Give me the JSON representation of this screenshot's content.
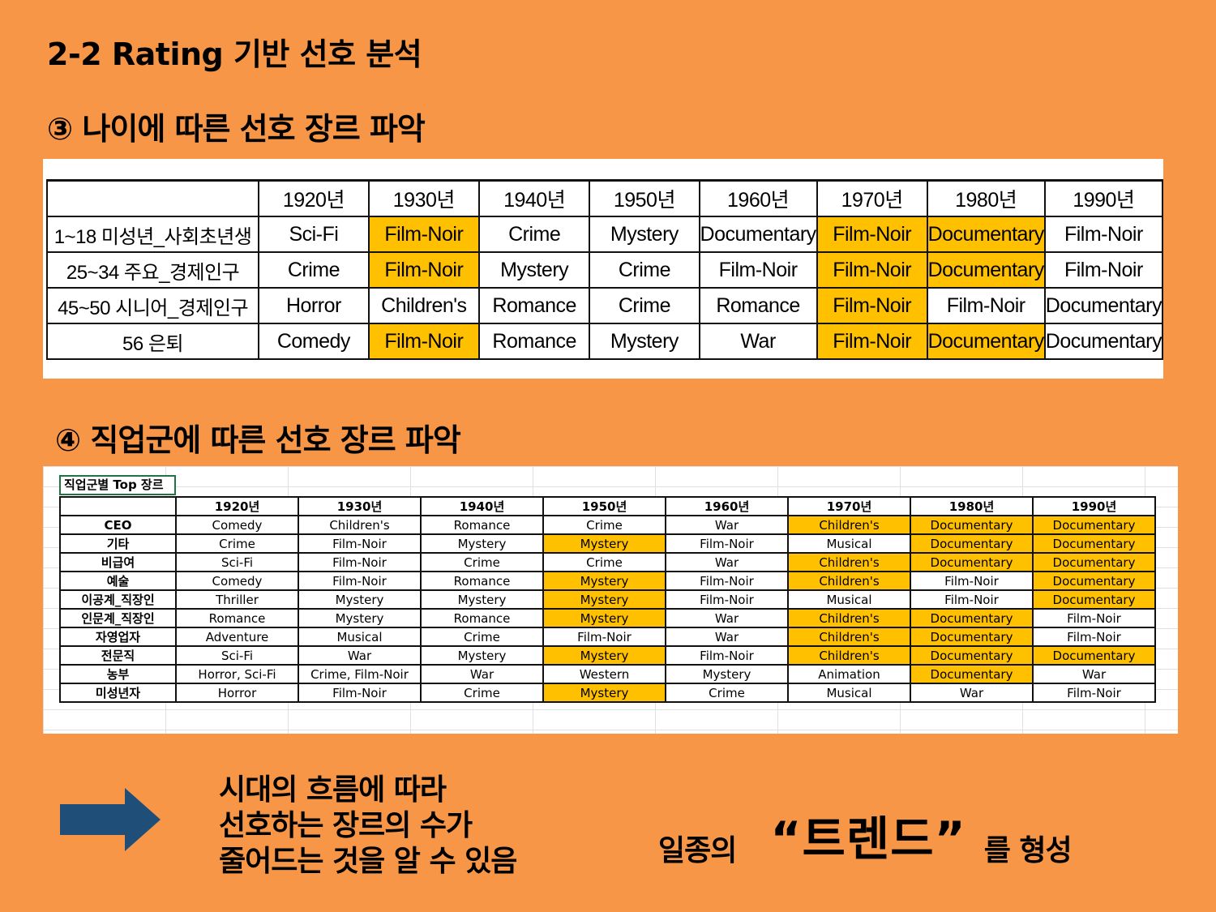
{
  "title": "2-2 Rating 기반 선호 분석",
  "sections": {
    "age": "③ 나이에 따른 선호 장르 파악",
    "job": "④ 직업군에 따른 선호 장르 파악"
  },
  "highlight_color": "#FFC000",
  "age_table": {
    "columns": [
      "",
      "1920년",
      "1930년",
      "1940년",
      "1950년",
      "1960년",
      "1970년",
      "1980년",
      "1990년"
    ],
    "rows": [
      {
        "label": "1~18  미성년_사회초년생",
        "cells": [
          "Sci-Fi",
          "Film-Noir",
          "Crime",
          "Mystery",
          "Documentary",
          "Film-Noir",
          "Documentary",
          "Film-Noir"
        ],
        "highlighted": [
          1,
          5,
          6
        ]
      },
      {
        "label": "25~34  주요_경제인구",
        "cells": [
          "Crime",
          "Film-Noir",
          "Mystery",
          "Crime",
          "Film-Noir",
          "Film-Noir",
          "Documentary",
          "Film-Noir"
        ],
        "highlighted": [
          1,
          5,
          6
        ]
      },
      {
        "label": "45~50  시니어_경제인구",
        "cells": [
          "Horror",
          "Children's",
          "Romance",
          "Crime",
          "Romance",
          "Film-Noir",
          "Film-Noir",
          "Documentary"
        ],
        "highlighted": [
          5
        ]
      },
      {
        "label": "56        은퇴",
        "cells": [
          "Comedy",
          "Film-Noir",
          "Romance",
          "Mystery",
          "War",
          "Film-Noir",
          "Documentary",
          "Documentary"
        ],
        "highlighted": [
          1,
          5,
          6
        ]
      }
    ]
  },
  "job_table": {
    "caption": "직업군별 Top 장르",
    "columns": [
      "",
      "1920년",
      "1930년",
      "1940년",
      "1950년",
      "1960년",
      "1970년",
      "1980년",
      "1990년"
    ],
    "rows": [
      {
        "label": "CEO",
        "cells": [
          "Comedy",
          "Children's",
          "Romance",
          "Crime",
          "War",
          "Children's",
          "Documentary",
          "Documentary"
        ],
        "highlighted": [
          5,
          6,
          7
        ]
      },
      {
        "label": "기타",
        "cells": [
          "Crime",
          "Film-Noir",
          "Mystery",
          "Mystery",
          "Film-Noir",
          "Musical",
          "Documentary",
          "Documentary"
        ],
        "highlighted": [
          3,
          6,
          7
        ]
      },
      {
        "label": "비급여",
        "cells": [
          "Sci-Fi",
          "Film-Noir",
          "Crime",
          "Crime",
          "War",
          "Children's",
          "Documentary",
          "Documentary"
        ],
        "highlighted": [
          5,
          6,
          7
        ]
      },
      {
        "label": "예술",
        "cells": [
          "Comedy",
          "Film-Noir",
          "Romance",
          "Mystery",
          "Film-Noir",
          "Children's",
          "Film-Noir",
          "Documentary"
        ],
        "highlighted": [
          3,
          5,
          7
        ]
      },
      {
        "label": "이공계_직장인",
        "cells": [
          "Thriller",
          "Mystery",
          "Mystery",
          "Mystery",
          "Film-Noir",
          "Musical",
          "Film-Noir",
          "Documentary"
        ],
        "highlighted": [
          3,
          7
        ]
      },
      {
        "label": "인문계_직장인",
        "cells": [
          "Romance",
          "Mystery",
          "Romance",
          "Mystery",
          "War",
          "Children's",
          "Documentary",
          "Film-Noir"
        ],
        "highlighted": [
          3,
          5,
          6
        ]
      },
      {
        "label": "자영업자",
        "cells": [
          "Adventure",
          "Musical",
          "Crime",
          "Film-Noir",
          "War",
          "Children's",
          "Documentary",
          "Film-Noir"
        ],
        "highlighted": [
          5,
          6
        ]
      },
      {
        "label": "전문직",
        "cells": [
          "Sci-Fi",
          "War",
          "Mystery",
          "Mystery",
          "Film-Noir",
          "Children's",
          "Documentary",
          "Documentary"
        ],
        "highlighted": [
          3,
          5,
          6,
          7
        ]
      },
      {
        "label": "농부",
        "cells": [
          "Horror, Sci-Fi",
          "Crime, Film-Noir",
          "War",
          "Western",
          "Mystery",
          "Animation",
          "Documentary",
          "War"
        ],
        "highlighted": [
          6
        ]
      },
      {
        "label": "미성년자",
        "cells": [
          "Horror",
          "Film-Noir",
          "Crime",
          "Mystery",
          "Crime",
          "Musical",
          "War",
          "Film-Noir"
        ],
        "highlighted": [
          3
        ]
      }
    ]
  },
  "conclusion": {
    "lines": [
      "시대의 흐름에 따라",
      "선호하는 장르의 수가",
      "줄어드는 것을 알 수 있음"
    ],
    "arrow_icon": "right-arrow-icon",
    "arrow_color": "#1F4E79",
    "trend_prefix": "일종의",
    "trend_word": "“트렌드”",
    "trend_suffix": "를 형성"
  }
}
